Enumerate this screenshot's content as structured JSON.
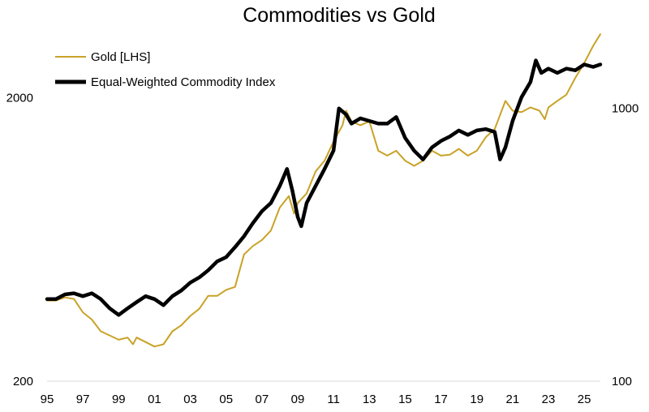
{
  "chart_data": {
    "type": "line",
    "title": "Commodities vs Gold",
    "legend_position": "top-left",
    "grid": false,
    "x_tick_labels": [
      "95",
      "97",
      "99",
      "01",
      "03",
      "05",
      "07",
      "09",
      "11",
      "13",
      "15",
      "17",
      "19",
      "21",
      "23",
      "25"
    ],
    "x_range": [
      1995,
      2025.9
    ],
    "left_axis": {
      "scale": "log",
      "range": [
        200,
        3400
      ],
      "tick_labels": [
        "200",
        "2000"
      ],
      "tick_values": [
        200,
        2000
      ]
    },
    "right_axis": {
      "scale": "log",
      "range": [
        100,
        1900
      ],
      "tick_labels": [
        "100",
        "1000"
      ],
      "tick_values": [
        100,
        1000
      ]
    },
    "series": [
      {
        "name": "Gold [LHS]",
        "axis": "left",
        "color": "#C9A227",
        "x": [
          1995.0,
          1995.5,
          1996.0,
          1996.5,
          1997.0,
          1997.5,
          1998.0,
          1998.5,
          1999.0,
          1999.5,
          1999.8,
          2000.0,
          2000.5,
          2001.0,
          2001.5,
          2002.0,
          2002.5,
          2003.0,
          2003.5,
          2004.0,
          2004.5,
          2005.0,
          2005.5,
          2006.0,
          2006.5,
          2007.0,
          2007.5,
          2008.0,
          2008.5,
          2008.8,
          2009.0,
          2009.5,
          2010.0,
          2010.5,
          2011.0,
          2011.5,
          2011.7,
          2012.0,
          2012.5,
          2013.0,
          2013.5,
          2014.0,
          2014.5,
          2015.0,
          2015.5,
          2016.0,
          2016.5,
          2017.0,
          2017.5,
          2018.0,
          2018.5,
          2019.0,
          2019.5,
          2020.0,
          2020.6,
          2021.0,
          2021.5,
          2022.0,
          2022.5,
          2022.8,
          2023.0,
          2023.5,
          2024.0,
          2024.5,
          2025.0,
          2025.5,
          2025.9
        ],
        "values": [
          385,
          385,
          395,
          390,
          350,
          330,
          300,
          290,
          280,
          285,
          270,
          285,
          275,
          265,
          270,
          300,
          315,
          340,
          360,
          400,
          400,
          420,
          430,
          560,
          600,
          630,
          680,
          820,
          900,
          780,
          850,
          920,
          1100,
          1200,
          1400,
          1600,
          1800,
          1650,
          1600,
          1650,
          1300,
          1250,
          1300,
          1200,
          1150,
          1200,
          1300,
          1250,
          1260,
          1320,
          1250,
          1300,
          1450,
          1550,
          1950,
          1800,
          1780,
          1850,
          1800,
          1680,
          1850,
          1950,
          2050,
          2350,
          2650,
          3050,
          3350
        ]
      },
      {
        "name": "Equal-Weighted Commodity Index",
        "axis": "right",
        "color": "#000000",
        "x": [
          1995.0,
          1995.5,
          1996.0,
          1996.5,
          1997.0,
          1997.5,
          1998.0,
          1998.5,
          1999.0,
          1999.5,
          2000.0,
          2000.5,
          2001.0,
          2001.5,
          2002.0,
          2002.5,
          2003.0,
          2003.5,
          2004.0,
          2004.5,
          2005.0,
          2005.5,
          2006.0,
          2006.5,
          2007.0,
          2007.5,
          2008.0,
          2008.4,
          2008.7,
          2009.0,
          2009.2,
          2009.5,
          2010.0,
          2010.5,
          2011.0,
          2011.3,
          2011.7,
          2012.0,
          2012.5,
          2013.0,
          2013.5,
          2014.0,
          2014.5,
          2015.0,
          2015.5,
          2016.0,
          2016.5,
          2017.0,
          2017.5,
          2018.0,
          2018.5,
          2019.0,
          2019.5,
          2020.0,
          2020.3,
          2020.6,
          2021.0,
          2021.5,
          2022.0,
          2022.3,
          2022.6,
          2023.0,
          2023.5,
          2024.0,
          2024.5,
          2025.0,
          2025.5,
          2025.9
        ],
        "values": [
          200,
          200,
          208,
          210,
          205,
          210,
          200,
          185,
          175,
          185,
          195,
          205,
          200,
          190,
          205,
          215,
          230,
          240,
          255,
          275,
          285,
          310,
          340,
          380,
          420,
          450,
          520,
          600,
          500,
          400,
          370,
          450,
          520,
          600,
          700,
          1000,
          950,
          880,
          920,
          900,
          880,
          880,
          930,
          780,
          700,
          650,
          720,
          760,
          790,
          830,
          800,
          830,
          840,
          820,
          650,
          720,
          900,
          1100,
          1250,
          1500,
          1350,
          1400,
          1350,
          1400,
          1380,
          1450,
          1420,
          1450
        ]
      }
    ]
  }
}
